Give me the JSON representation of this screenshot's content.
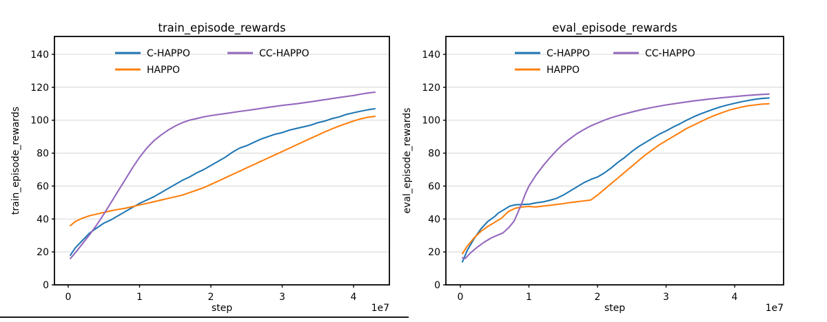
{
  "page": {
    "background": "#ffffff",
    "partial_bottom_border_color": "#1a1a1a"
  },
  "chart_data": [
    {
      "type": "line",
      "title": "train_episode_rewards",
      "xlabel": "step",
      "ylabel": "train_episode_rewards",
      "x_offset_label": "1e7",
      "x_unit": "steps x 1e7",
      "x_tick_labels": [
        "0",
        "1",
        "2",
        "3",
        "4"
      ],
      "x_ticks": [
        0,
        1,
        2,
        3,
        4
      ],
      "y_tick_labels": [
        "0",
        "20",
        "40",
        "60",
        "80",
        "100",
        "120",
        "140"
      ],
      "y_ticks": [
        0,
        20,
        40,
        60,
        80,
        100,
        120,
        140
      ],
      "xlim": [
        -0.19,
        4.5
      ],
      "ylim": [
        0,
        150.8
      ],
      "grid": "horizontal",
      "legend": {
        "position": "upper center",
        "columns": 2,
        "entries": [
          "C-HAPPO",
          "HAPPO",
          "CC-HAPPO"
        ]
      },
      "series": [
        {
          "name": "C-HAPPO",
          "color": "#1f77b4",
          "points": [
            [
              0.03,
              18
            ],
            [
              0.1,
              22.5
            ],
            [
              0.2,
              27
            ],
            [
              0.3,
              31.5
            ],
            [
              0.4,
              34.5
            ],
            [
              0.5,
              37.5
            ],
            [
              0.6,
              39.5
            ],
            [
              0.7,
              42
            ],
            [
              0.8,
              44.5
            ],
            [
              0.9,
              47
            ],
            [
              1.0,
              49.5
            ],
            [
              1.1,
              51.5
            ],
            [
              1.2,
              53.5
            ],
            [
              1.3,
              56
            ],
            [
              1.4,
              58.5
            ],
            [
              1.5,
              61
            ],
            [
              1.6,
              63.5
            ],
            [
              1.7,
              65.5
            ],
            [
              1.8,
              68
            ],
            [
              1.9,
              70
            ],
            [
              2.0,
              72.5
            ],
            [
              2.1,
              75
            ],
            [
              2.2,
              77.5
            ],
            [
              2.3,
              80.5
            ],
            [
              2.4,
              83
            ],
            [
              2.5,
              84.5
            ],
            [
              2.6,
              86.5
            ],
            [
              2.7,
              88.5
            ],
            [
              2.8,
              90
            ],
            [
              2.9,
              91.5
            ],
            [
              3.0,
              92.5
            ],
            [
              3.1,
              94
            ],
            [
              3.2,
              95
            ],
            [
              3.3,
              96
            ],
            [
              3.4,
              97
            ],
            [
              3.5,
              98.5
            ],
            [
              3.6,
              99.5
            ],
            [
              3.7,
              101
            ],
            [
              3.8,
              102
            ],
            [
              3.9,
              103.5
            ],
            [
              4.0,
              104.5
            ],
            [
              4.1,
              105.5
            ],
            [
              4.2,
              106.3
            ],
            [
              4.3,
              107
            ]
          ]
        },
        {
          "name": "HAPPO",
          "color": "#ff7f0e",
          "points": [
            [
              0.03,
              36
            ],
            [
              0.1,
              38.5
            ],
            [
              0.2,
              40.5
            ],
            [
              0.3,
              42
            ],
            [
              0.4,
              43
            ],
            [
              0.5,
              44
            ],
            [
              0.6,
              45
            ],
            [
              0.7,
              45.8
            ],
            [
              0.8,
              46.5
            ],
            [
              0.9,
              47.5
            ],
            [
              1.0,
              48.5
            ],
            [
              1.1,
              49.5
            ],
            [
              1.2,
              50.5
            ],
            [
              1.3,
              51.5
            ],
            [
              1.4,
              52.5
            ],
            [
              1.5,
              53.5
            ],
            [
              1.6,
              54.5
            ],
            [
              1.7,
              56
            ],
            [
              1.8,
              57.5
            ],
            [
              1.9,
              59
            ],
            [
              2.0,
              61
            ],
            [
              2.1,
              63
            ],
            [
              2.2,
              65
            ],
            [
              2.3,
              67
            ],
            [
              2.4,
              69
            ],
            [
              2.5,
              71
            ],
            [
              2.6,
              73
            ],
            [
              2.7,
              75
            ],
            [
              2.8,
              77
            ],
            [
              2.9,
              79
            ],
            [
              3.0,
              81
            ],
            [
              3.1,
              83
            ],
            [
              3.2,
              85
            ],
            [
              3.3,
              87
            ],
            [
              3.4,
              89
            ],
            [
              3.5,
              91
            ],
            [
              3.6,
              93
            ],
            [
              3.7,
              94.8
            ],
            [
              3.8,
              96.5
            ],
            [
              3.9,
              98
            ],
            [
              4.0,
              99.5
            ],
            [
              4.1,
              100.8
            ],
            [
              4.2,
              101.8
            ],
            [
              4.3,
              102.3
            ]
          ]
        },
        {
          "name": "CC-HAPPO",
          "color": "#9467bd",
          "points": [
            [
              0.03,
              16
            ],
            [
              0.1,
              19.5
            ],
            [
              0.2,
              25
            ],
            [
              0.3,
              30.5
            ],
            [
              0.4,
              36.5
            ],
            [
              0.5,
              43
            ],
            [
              0.6,
              50
            ],
            [
              0.7,
              57
            ],
            [
              0.8,
              64
            ],
            [
              0.9,
              71
            ],
            [
              1.0,
              77.5
            ],
            [
              1.1,
              83
            ],
            [
              1.2,
              87.5
            ],
            [
              1.3,
              91
            ],
            [
              1.4,
              94
            ],
            [
              1.5,
              96.5
            ],
            [
              1.6,
              98.5
            ],
            [
              1.7,
              100
            ],
            [
              1.8,
              101
            ],
            [
              1.9,
              102
            ],
            [
              2.0,
              102.8
            ],
            [
              2.2,
              104
            ],
            [
              2.4,
              105.3
            ],
            [
              2.6,
              106.5
            ],
            [
              2.8,
              107.8
            ],
            [
              3.0,
              109
            ],
            [
              3.2,
              110
            ],
            [
              3.4,
              111.2
            ],
            [
              3.6,
              112.5
            ],
            [
              3.8,
              113.8
            ],
            [
              4.0,
              115
            ],
            [
              4.1,
              115.8
            ],
            [
              4.2,
              116.5
            ],
            [
              4.3,
              117
            ]
          ]
        }
      ]
    },
    {
      "type": "line",
      "title": "eval_episode_rewards",
      "xlabel": "step",
      "ylabel": "eval_episode_rewards",
      "x_offset_label": "1e7",
      "x_unit": "steps x 1e7",
      "x_tick_labels": [
        "0",
        "1",
        "2",
        "3",
        "4"
      ],
      "x_ticks": [
        0,
        1,
        2,
        3,
        4
      ],
      "y_tick_labels": [
        "0",
        "20",
        "40",
        "60",
        "80",
        "100",
        "120",
        "140"
      ],
      "y_ticks": [
        0,
        20,
        40,
        60,
        80,
        100,
        120,
        140
      ],
      "xlim": [
        -0.21,
        4.71
      ],
      "ylim": [
        0,
        150.8
      ],
      "grid": "horizontal",
      "legend": {
        "position": "upper center",
        "columns": 2,
        "entries": [
          "C-HAPPO",
          "HAPPO",
          "CC-HAPPO"
        ]
      },
      "series": [
        {
          "name": "C-HAPPO",
          "color": "#1f77b4",
          "points": [
            [
              0.03,
              14
            ],
            [
              0.1,
              21
            ],
            [
              0.2,
              28
            ],
            [
              0.3,
              34
            ],
            [
              0.4,
              38.5
            ],
            [
              0.5,
              41.5
            ],
            [
              0.55,
              43.5
            ],
            [
              0.65,
              46
            ],
            [
              0.72,
              47.8
            ],
            [
              0.8,
              48.6
            ],
            [
              0.9,
              48.8
            ],
            [
              1.0,
              49
            ],
            [
              1.1,
              49.8
            ],
            [
              1.2,
              50.3
            ],
            [
              1.3,
              51.3
            ],
            [
              1.4,
              52.5
            ],
            [
              1.5,
              54.5
            ],
            [
              1.6,
              57
            ],
            [
              1.7,
              59.5
            ],
            [
              1.8,
              62
            ],
            [
              1.9,
              64
            ],
            [
              2.0,
              65.5
            ],
            [
              2.1,
              68
            ],
            [
              2.2,
              71
            ],
            [
              2.3,
              74.5
            ],
            [
              2.4,
              77.5
            ],
            [
              2.5,
              81
            ],
            [
              2.6,
              84
            ],
            [
              2.7,
              86.5
            ],
            [
              2.8,
              89
            ],
            [
              2.9,
              91.5
            ],
            [
              3.0,
              93.5
            ],
            [
              3.1,
              95.8
            ],
            [
              3.2,
              97.8
            ],
            [
              3.3,
              100
            ],
            [
              3.4,
              102
            ],
            [
              3.5,
              103.8
            ],
            [
              3.6,
              105.3
            ],
            [
              3.7,
              106.8
            ],
            [
              3.8,
              108.2
            ],
            [
              3.9,
              109.3
            ],
            [
              4.0,
              110.3
            ],
            [
              4.1,
              111.2
            ],
            [
              4.2,
              112
            ],
            [
              4.3,
              112.7
            ],
            [
              4.4,
              113.2
            ],
            [
              4.5,
              113.5
            ]
          ]
        },
        {
          "name": "HAPPO",
          "color": "#ff7f0e",
          "points": [
            [
              0.03,
              19
            ],
            [
              0.1,
              23.5
            ],
            [
              0.2,
              28.5
            ],
            [
              0.3,
              32.5
            ],
            [
              0.4,
              35.5
            ],
            [
              0.5,
              38
            ],
            [
              0.6,
              40.5
            ],
            [
              0.7,
              44.5
            ],
            [
              0.8,
              46.5
            ],
            [
              0.9,
              47.3
            ],
            [
              1.0,
              47.6
            ],
            [
              1.1,
              47.3
            ],
            [
              1.2,
              47.8
            ],
            [
              1.3,
              48.3
            ],
            [
              1.4,
              48.8
            ],
            [
              1.5,
              49.3
            ],
            [
              1.6,
              50
            ],
            [
              1.7,
              50.5
            ],
            [
              1.8,
              51
            ],
            [
              1.9,
              51.5
            ],
            [
              2.0,
              54.5
            ],
            [
              2.1,
              58
            ],
            [
              2.2,
              61.5
            ],
            [
              2.3,
              65
            ],
            [
              2.4,
              68.5
            ],
            [
              2.5,
              72
            ],
            [
              2.6,
              75.5
            ],
            [
              2.7,
              79
            ],
            [
              2.8,
              82
            ],
            [
              2.9,
              85
            ],
            [
              3.0,
              87.5
            ],
            [
              3.1,
              90
            ],
            [
              3.2,
              92.5
            ],
            [
              3.3,
              95
            ],
            [
              3.4,
              97
            ],
            [
              3.5,
              99
            ],
            [
              3.6,
              101
            ],
            [
              3.7,
              102.8
            ],
            [
              3.8,
              104.3
            ],
            [
              3.9,
              105.8
            ],
            [
              4.0,
              107
            ],
            [
              4.1,
              108
            ],
            [
              4.2,
              108.8
            ],
            [
              4.3,
              109.3
            ],
            [
              4.4,
              109.8
            ],
            [
              4.5,
              110
            ]
          ]
        },
        {
          "name": "CC-HAPPO",
          "color": "#9467bd",
          "points": [
            [
              0.03,
              16.5
            ],
            [
              0.07,
              16
            ],
            [
              0.15,
              19.5
            ],
            [
              0.25,
              23
            ],
            [
              0.35,
              26
            ],
            [
              0.45,
              28.5
            ],
            [
              0.55,
              30.3
            ],
            [
              0.62,
              31.5
            ],
            [
              0.7,
              34.5
            ],
            [
              0.78,
              38.5
            ],
            [
              0.84,
              44
            ],
            [
              0.9,
              50
            ],
            [
              0.95,
              55.5
            ],
            [
              1.0,
              60
            ],
            [
              1.1,
              66.5
            ],
            [
              1.2,
              72
            ],
            [
              1.3,
              77
            ],
            [
              1.4,
              81.5
            ],
            [
              1.5,
              85.5
            ],
            [
              1.6,
              88.8
            ],
            [
              1.7,
              91.8
            ],
            [
              1.8,
              94.3
            ],
            [
              1.9,
              96.5
            ],
            [
              2.0,
              98.3
            ],
            [
              2.1,
              100
            ],
            [
              2.2,
              101.5
            ],
            [
              2.35,
              103.3
            ],
            [
              2.5,
              105
            ],
            [
              2.65,
              106.5
            ],
            [
              2.8,
              107.8
            ],
            [
              3.0,
              109.3
            ],
            [
              3.2,
              110.5
            ],
            [
              3.4,
              111.7
            ],
            [
              3.6,
              112.7
            ],
            [
              3.8,
              113.6
            ],
            [
              4.0,
              114.4
            ],
            [
              4.2,
              115.1
            ],
            [
              4.35,
              115.5
            ],
            [
              4.5,
              115.9
            ]
          ]
        }
      ]
    }
  ],
  "style": {
    "grid_color": "#d9d9d9",
    "spine_color": "#000000",
    "text_color": "#000000"
  }
}
